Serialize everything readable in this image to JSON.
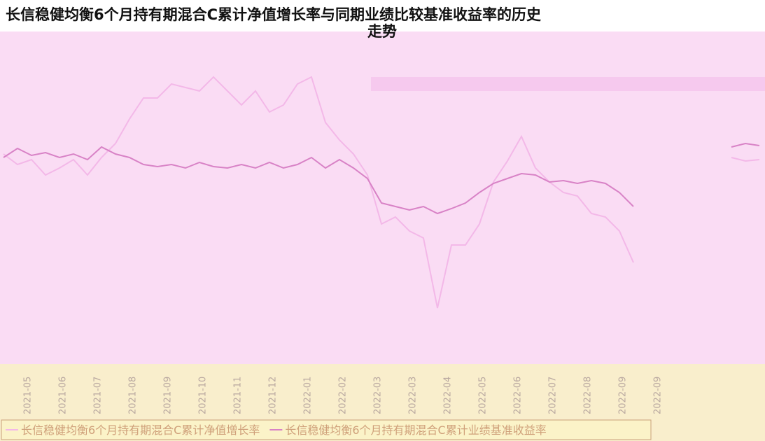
{
  "chart_data": {
    "type": "line",
    "title": "长信稳健均衡6个月持有期混合C累计净值增长率与同期业绩比较基准收益率的历史走势",
    "x_labels": [
      "2021-05",
      "2021-06",
      "2021-07",
      "2021-08",
      "2021-09",
      "2021-10",
      "2021-11",
      "2021-12",
      "2022-01",
      "2022-02",
      "2022-03",
      "2022-03",
      "2022-04",
      "2022-05",
      "2022-06",
      "2022-07",
      "2022-08",
      "2022-09",
      "2022-09"
    ],
    "ylim": [
      -40,
      20
    ],
    "series": [
      {
        "name": "长信稳健均衡6个月持有期混合C累计净值增长率",
        "color": "#f3b8e8",
        "values": [
          2,
          -0.25,
          0.8,
          -2.5,
          -1,
          0.8,
          -2.5,
          1.25,
          4.25,
          9.5,
          14,
          14,
          17,
          16.25,
          15.5,
          18.5,
          15.5,
          12.5,
          15.5,
          11,
          12.5,
          17,
          18.5,
          8.75,
          5,
          2,
          -2.5,
          -13,
          -11.5,
          -14.5,
          -16,
          -31,
          -17.5,
          -17.5,
          -13,
          -4,
          0.5,
          5.75,
          -1,
          -4,
          -6.25,
          -7,
          -10.75,
          -11.5,
          -14.5,
          -21.25,
          null,
          null,
          null,
          null,
          null,
          null,
          1.25,
          0.5,
          0.8
        ]
      },
      {
        "name": "长信稳健均衡6个月持有期混合C累计业绩基准收益率",
        "color": "#d882c6",
        "values": [
          1.25,
          3.2,
          1.7,
          2.3,
          1.25,
          2,
          0.8,
          3.5,
          2,
          1.25,
          -0.25,
          -0.7,
          -0.25,
          -1,
          0.2,
          -0.7,
          -1,
          -0.25,
          -1,
          0.2,
          -1,
          -0.25,
          1.25,
          -1,
          0.8,
          -1,
          -3.25,
          -8.5,
          -9.25,
          -10,
          -9.25,
          -10.75,
          -9.7,
          -8.5,
          -6.25,
          -4.3,
          -3.25,
          -2.2,
          -2.5,
          -4,
          -3.7,
          -4.3,
          -3.7,
          -4.3,
          -6.25,
          -9.25,
          null,
          null,
          null,
          null,
          null,
          null,
          3.5,
          4.25,
          3.8
        ]
      }
    ]
  }
}
